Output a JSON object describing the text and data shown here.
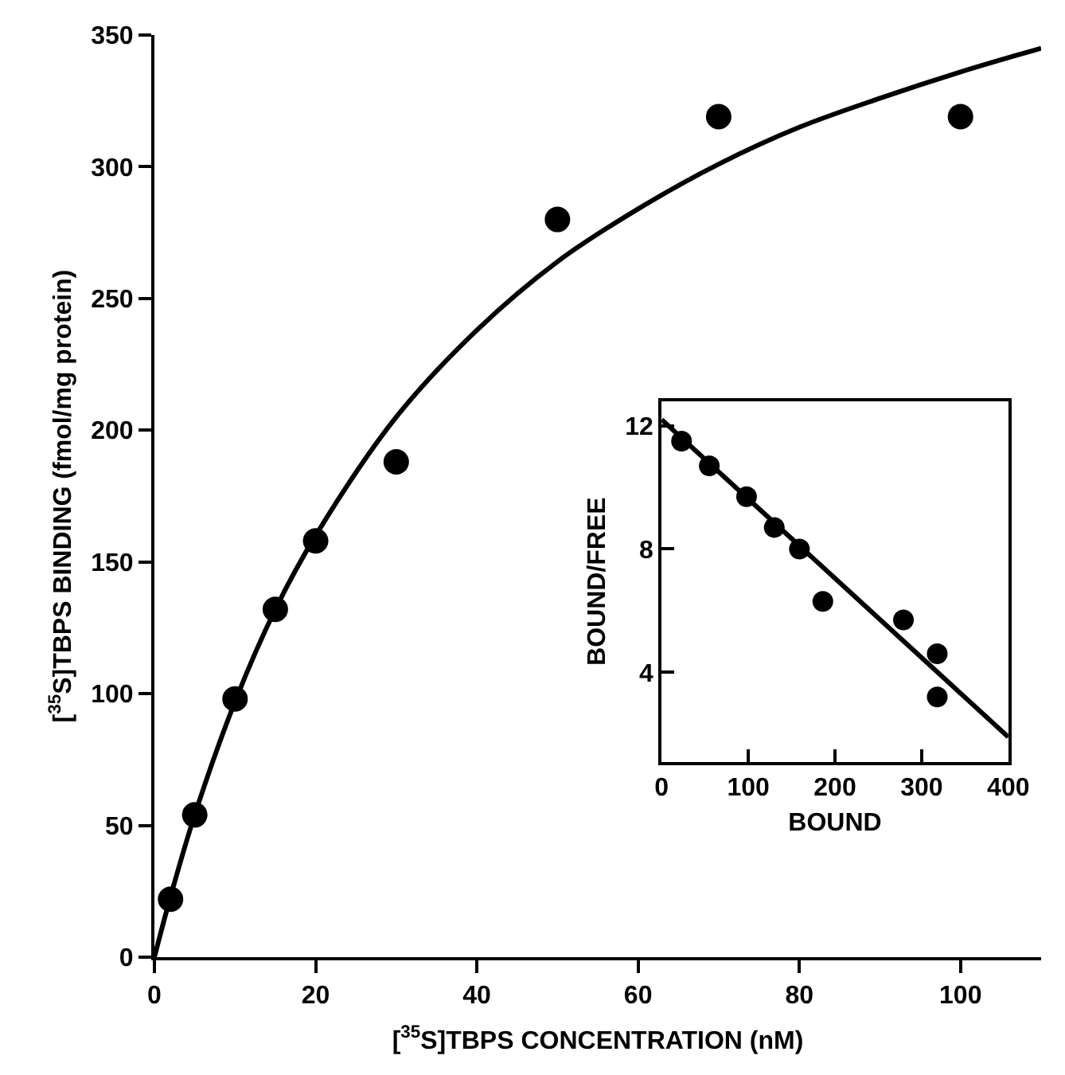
{
  "chart_data": [
    {
      "type": "scatter",
      "xlabel": "[$^{35}$S]TBPS CONCENTRATION (nM)",
      "ylabel": "[$^{35}$S]TBPS BINDING (fmol/mg protein)",
      "xlim": [
        0,
        110
      ],
      "ylim": [
        0,
        350
      ],
      "xticks": [
        0,
        20,
        40,
        60,
        80,
        100
      ],
      "yticks": [
        0,
        50,
        100,
        150,
        200,
        250,
        300,
        350
      ],
      "marker": "circle",
      "series": [
        {
          "color": "#000000",
          "x": [
            2,
            5,
            10,
            15,
            20,
            30,
            50,
            70,
            100
          ],
          "values": [
            22,
            54,
            98,
            132,
            158,
            188,
            280,
            319,
            319
          ]
        },
        {
          "type": "line",
          "color": "#000000",
          "marker": "none",
          "line_style": "solid",
          "x": [
            0,
            2,
            5,
            10,
            15,
            20,
            30,
            40,
            50,
            60,
            70,
            80,
            90,
            100,
            110
          ],
          "values": [
            0,
            23,
            54,
            97,
            132,
            160,
            205,
            238,
            264,
            284,
            301,
            315,
            326,
            336,
            345
          ]
        }
      ]
    },
    {
      "type": "scatter",
      "xlabel": "BOUND",
      "ylabel": "BOUND/FREE",
      "xlim": [
        0,
        400
      ],
      "ylim": [
        1.1,
        12.8
      ],
      "xticks": [
        0,
        100,
        200,
        300,
        400
      ],
      "yticks": [
        4,
        8,
        12
      ],
      "marker": "circle",
      "series": [
        {
          "color": "#000000",
          "x": [
            23,
            55,
            98,
            130,
            159,
            186,
            279,
            318,
            318
          ],
          "values": [
            11.5,
            10.7,
            9.7,
            8.7,
            8.0,
            6.3,
            5.7,
            4.6,
            3.2
          ]
        },
        {
          "type": "line",
          "color": "#000000",
          "marker": "none",
          "line_style": "solid",
          "x": [
            0,
            400
          ],
          "values": [
            12.2,
            1.9
          ]
        }
      ]
    }
  ]
}
